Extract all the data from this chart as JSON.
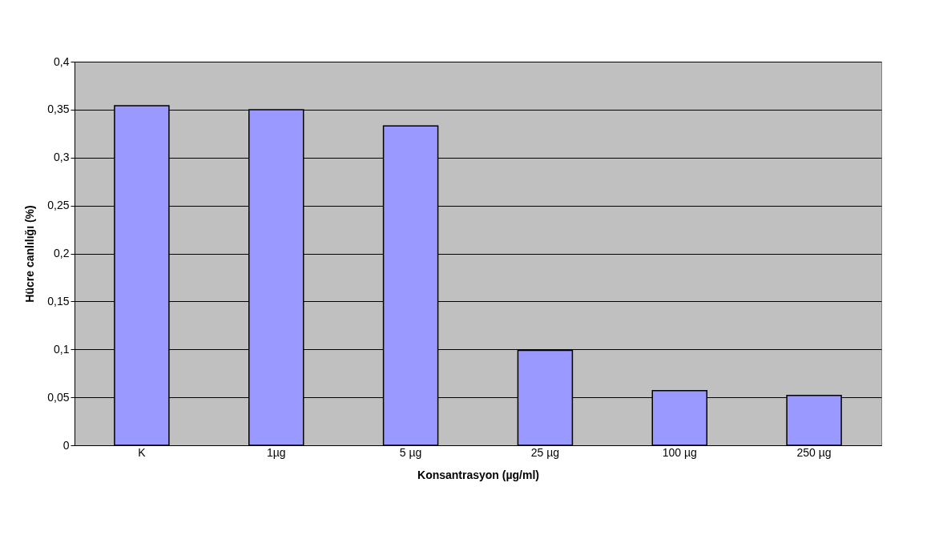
{
  "chart_data": {
    "type": "bar",
    "xlabel": "Konsantrasyon (µg/ml)",
    "ylabel": "Hücre canlılığı (%)",
    "categories": [
      "K",
      "1µg",
      "5 µg",
      "25 µg",
      "100 µg",
      "250 µg"
    ],
    "values": [
      0.354,
      0.35,
      0.333,
      0.099,
      0.057,
      0.052
    ],
    "color": "#9999ff",
    "ylim": [
      0,
      0.4
    ],
    "yticks": [
      {
        "value": 0,
        "label": "0"
      },
      {
        "value": 0.05,
        "label": "0,05"
      },
      {
        "value": 0.1,
        "label": "0,1"
      },
      {
        "value": 0.15,
        "label": "0,15"
      },
      {
        "value": 0.2,
        "label": "0,2"
      },
      {
        "value": 0.25,
        "label": "0,25"
      },
      {
        "value": 0.3,
        "label": "0,3"
      },
      {
        "value": 0.35,
        "label": "0,35"
      },
      {
        "value": 0.4,
        "label": "0,4"
      }
    ],
    "grid": "y"
  }
}
